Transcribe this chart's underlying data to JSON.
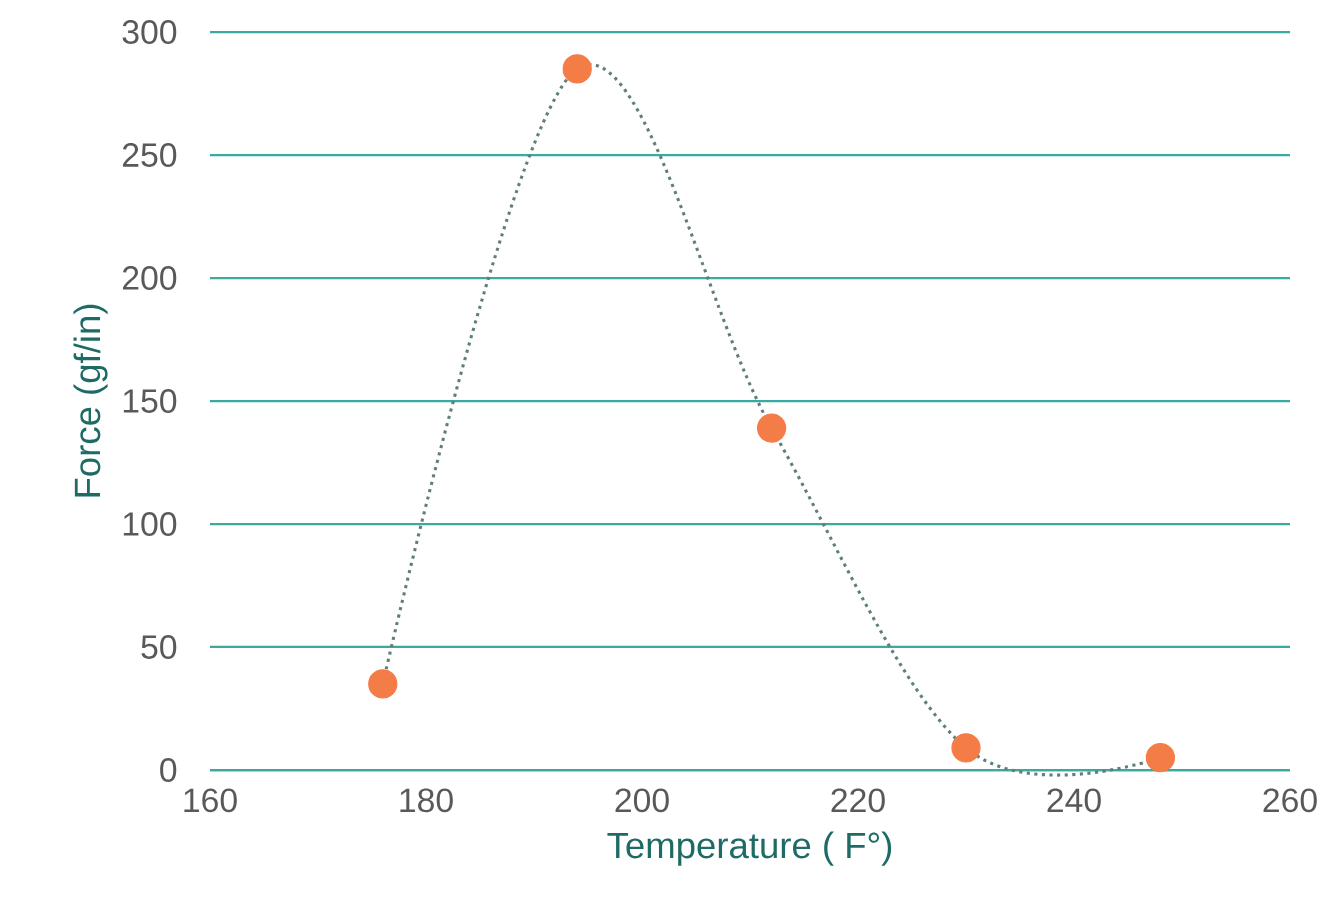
{
  "chart_data": {
    "type": "line",
    "xlabel": "Temperature ( F°)",
    "ylabel": "Force (gf/in)",
    "x": [
      176,
      194,
      212,
      230,
      248
    ],
    "series": [
      {
        "color": "#f47c47",
        "values": [
          35,
          285,
          139,
          9,
          5
        ]
      }
    ],
    "xlim": [
      160,
      260
    ],
    "xticks": [
      160,
      180,
      200,
      220,
      240,
      260
    ],
    "ylim": [
      0,
      300
    ],
    "yticks": [
      0,
      50,
      100,
      150,
      200,
      250,
      300
    ],
    "grid": "y",
    "marker": "circle",
    "line_style": "dotted"
  }
}
